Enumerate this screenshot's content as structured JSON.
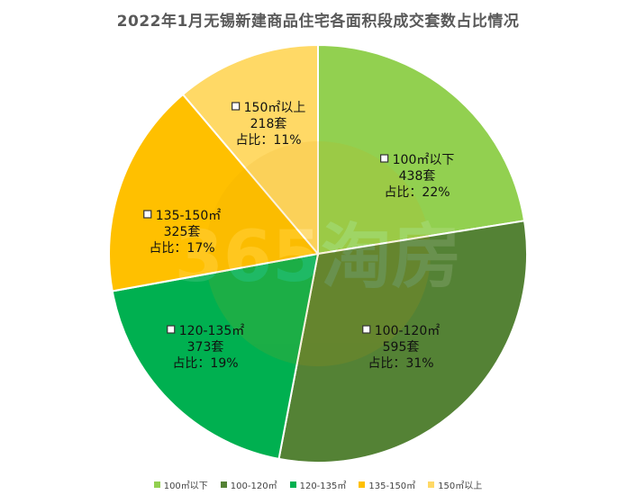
{
  "chart_data": {
    "type": "pie",
    "title": "2022年1月无锡新建商品住宅各面积段成交套数占比情况",
    "unit": "套",
    "share_prefix": "占比：",
    "slices": [
      {
        "name": "100㎡以下",
        "value": 438,
        "percent": "22%",
        "color": "#92d050"
      },
      {
        "name": "100-120㎡",
        "value": 595,
        "percent": "31%",
        "color": "#548235"
      },
      {
        "name": "120-135㎡",
        "value": 373,
        "percent": "19%",
        "color": "#00b050"
      },
      {
        "name": "135-150㎡",
        "value": 325,
        "percent": "17%",
        "color": "#ffc000"
      },
      {
        "name": "150㎡以上",
        "value": 218,
        "percent": "11%",
        "color": "#ffd966"
      }
    ],
    "legend_position": "bottom",
    "watermark": "365淘房"
  }
}
